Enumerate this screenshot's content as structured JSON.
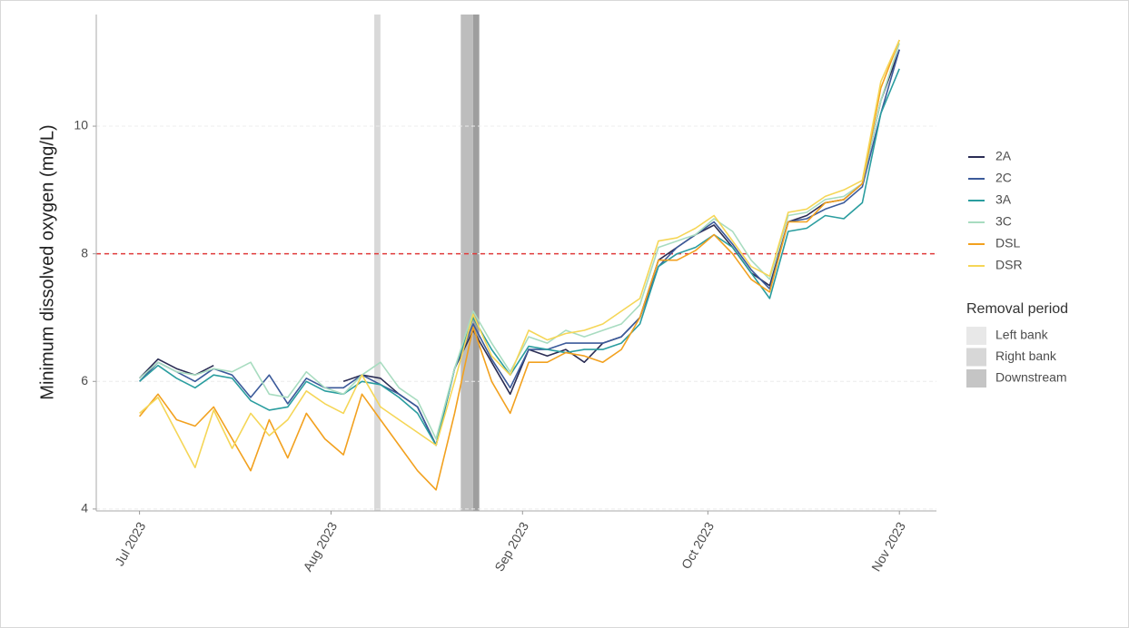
{
  "chart_data": {
    "type": "line",
    "y_label": "Minimum dissolved oxygen (mg/L)",
    "x": [
      "2023-07-01",
      "2023-07-04",
      "2023-07-07",
      "2023-07-10",
      "2023-07-13",
      "2023-07-16",
      "2023-07-19",
      "2023-07-22",
      "2023-07-25",
      "2023-07-28",
      "2023-07-31",
      "2023-08-03",
      "2023-08-06",
      "2023-08-09",
      "2023-08-12",
      "2023-08-15",
      "2023-08-18",
      "2023-08-21",
      "2023-08-24",
      "2023-08-27",
      "2023-08-30",
      "2023-09-02",
      "2023-09-05",
      "2023-09-08",
      "2023-09-11",
      "2023-09-14",
      "2023-09-17",
      "2023-09-20",
      "2023-09-23",
      "2023-09-26",
      "2023-09-29",
      "2023-10-02",
      "2023-10-05",
      "2023-10-08",
      "2023-10-11",
      "2023-10-14",
      "2023-10-17",
      "2023-10-20",
      "2023-10-23",
      "2023-10-26",
      "2023-10-29",
      "2023-11-01"
    ],
    "series": [
      {
        "name": "2A",
        "color": "#2b2d54",
        "values": [
          6.05,
          6.35,
          6.2,
          6.1,
          6.25,
          null,
          null,
          null,
          null,
          null,
          null,
          6.0,
          6.1,
          6.05,
          5.8,
          5.6,
          5.0,
          6.2,
          6.8,
          6.3,
          5.8,
          6.5,
          6.4,
          6.5,
          6.3,
          6.6,
          6.7,
          7.0,
          7.9,
          8.1,
          8.3,
          8.45,
          8.1,
          7.7,
          7.5,
          8.5,
          8.6,
          8.8,
          8.85,
          9.1,
          10.4,
          11.2
        ]
      },
      {
        "name": "2C",
        "color": "#3b5a9a",
        "values": [
          6.0,
          6.3,
          6.15,
          6.0,
          6.2,
          6.1,
          5.75,
          6.1,
          5.65,
          6.05,
          5.9,
          5.9,
          6.1,
          5.95,
          5.8,
          5.6,
          5.0,
          6.2,
          6.9,
          6.35,
          5.9,
          6.5,
          6.5,
          6.6,
          6.6,
          6.6,
          6.7,
          7.0,
          7.8,
          8.1,
          8.3,
          8.5,
          8.15,
          7.75,
          7.45,
          8.5,
          8.55,
          8.7,
          8.8,
          9.05,
          10.2,
          11.2
        ]
      },
      {
        "name": "3A",
        "color": "#2a9d9f",
        "values": [
          6.0,
          6.25,
          6.05,
          5.9,
          6.1,
          6.05,
          5.7,
          5.55,
          5.6,
          6.0,
          5.85,
          5.8,
          6.0,
          5.95,
          5.75,
          5.5,
          5.0,
          6.2,
          7.0,
          6.5,
          6.1,
          6.55,
          6.5,
          6.45,
          6.5,
          6.5,
          6.6,
          6.9,
          7.8,
          8.0,
          8.1,
          8.3,
          8.1,
          7.7,
          7.3,
          8.35,
          8.4,
          8.6,
          8.55,
          8.8,
          10.2,
          10.9
        ]
      },
      {
        "name": "3C",
        "color": "#a8dcc0",
        "values": [
          6.05,
          6.3,
          6.15,
          6.1,
          6.2,
          6.15,
          6.3,
          5.8,
          5.75,
          6.15,
          5.9,
          5.8,
          6.1,
          6.3,
          5.9,
          5.7,
          5.1,
          6.2,
          7.1,
          6.6,
          6.15,
          6.7,
          6.6,
          6.8,
          6.7,
          6.8,
          6.9,
          7.2,
          8.1,
          8.2,
          8.3,
          8.55,
          8.35,
          7.9,
          7.6,
          8.6,
          8.65,
          8.85,
          8.9,
          9.1,
          10.4,
          11.3
        ]
      },
      {
        "name": "DSL",
        "color": "#f2a11f",
        "values": [
          5.45,
          5.8,
          5.4,
          5.3,
          5.6,
          5.1,
          4.6,
          5.4,
          4.8,
          5.5,
          5.1,
          4.85,
          5.8,
          5.4,
          5.0,
          4.6,
          4.3,
          5.5,
          6.85,
          6.0,
          5.5,
          6.3,
          6.3,
          6.45,
          6.4,
          6.3,
          6.5,
          7.0,
          7.9,
          7.9,
          8.05,
          8.3,
          8.0,
          7.6,
          7.4,
          8.5,
          8.5,
          8.8,
          8.85,
          9.1,
          10.6,
          11.35
        ]
      },
      {
        "name": "DSR",
        "color": "#f5d657",
        "values": [
          5.5,
          5.75,
          5.2,
          4.65,
          5.55,
          4.95,
          5.5,
          5.15,
          5.4,
          5.85,
          5.65,
          5.5,
          6.1,
          5.6,
          5.4,
          5.2,
          5.0,
          6.0,
          7.05,
          6.4,
          6.1,
          6.8,
          6.65,
          6.75,
          6.8,
          6.9,
          7.1,
          7.3,
          8.2,
          8.25,
          8.4,
          8.6,
          8.2,
          7.8,
          7.65,
          8.65,
          8.7,
          8.9,
          9.0,
          9.15,
          10.7,
          11.35
        ]
      }
    ],
    "xlim": [
      "2023-06-24",
      "2023-11-07"
    ],
    "xticks": [
      {
        "value": "2023-07-01",
        "label": "Jul 2023"
      },
      {
        "value": "2023-08-01",
        "label": "Aug 2023"
      },
      {
        "value": "2023-09-01",
        "label": "Sep 2023"
      },
      {
        "value": "2023-10-01",
        "label": "Oct 2023"
      },
      {
        "value": "2023-11-01",
        "label": "Nov 2023"
      }
    ],
    "ylim": [
      3.97,
      11.75
    ],
    "yticks": [
      4,
      6,
      8,
      10
    ],
    "grid": true,
    "threshold": {
      "value": 8,
      "color": "#e03a3a"
    },
    "shaded_periods": {
      "title": "Removal period",
      "items": [
        {
          "name": "Left bank",
          "start": "2023-08-08",
          "end": "2023-08-09",
          "color": "#d9d9d9"
        },
        {
          "name": "Right bank",
          "start": "2023-08-22",
          "end": "2023-08-24",
          "color": "#bdbdbd"
        },
        {
          "name": "Downstream",
          "start": "2023-08-24",
          "end": "2023-08-25",
          "color": "#9e9e9e"
        }
      ]
    }
  }
}
